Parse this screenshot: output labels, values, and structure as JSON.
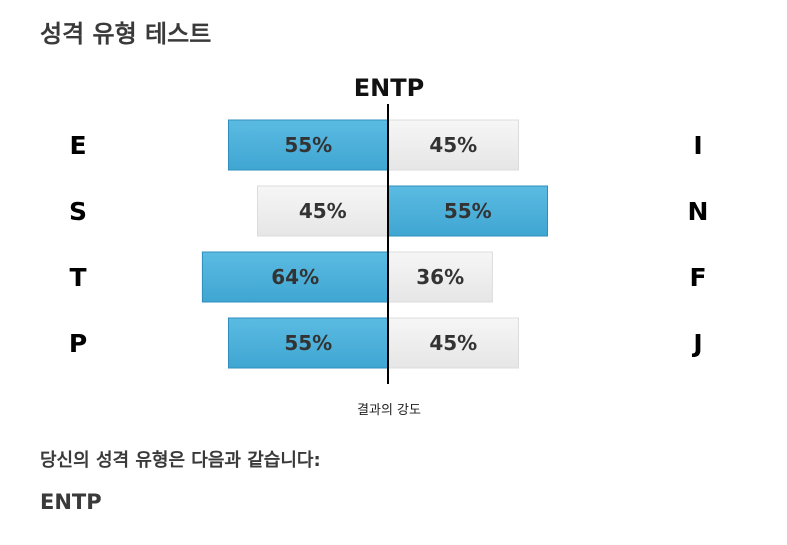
{
  "page": {
    "title": "성격 유형 테스트",
    "result_label": "당신의 성격 유형은 다음과 같습니다:",
    "result_type": "ENTP"
  },
  "chart_data": {
    "type": "bar",
    "title": "ENTP",
    "xlabel": "결과의 강도",
    "orientation": "horizontal-diverging",
    "unit": "%",
    "colors": {
      "dominant": "#4aafd8",
      "minor": "#efefef",
      "axis": "#000000"
    },
    "rows": [
      {
        "left_letter": "E",
        "right_letter": "I",
        "left_value": 55,
        "right_value": 45,
        "left_label": "55%",
        "right_label": "45%",
        "dominant": "left"
      },
      {
        "left_letter": "S",
        "right_letter": "N",
        "left_value": 45,
        "right_value": 55,
        "left_label": "45%",
        "right_label": "55%",
        "dominant": "right"
      },
      {
        "left_letter": "T",
        "right_letter": "F",
        "left_value": 64,
        "right_value": 36,
        "left_label": "64%",
        "right_label": "36%",
        "dominant": "left"
      },
      {
        "left_letter": "P",
        "right_letter": "J",
        "left_value": 55,
        "right_value": 45,
        "left_label": "55%",
        "right_label": "45%",
        "dominant": "left"
      }
    ]
  }
}
